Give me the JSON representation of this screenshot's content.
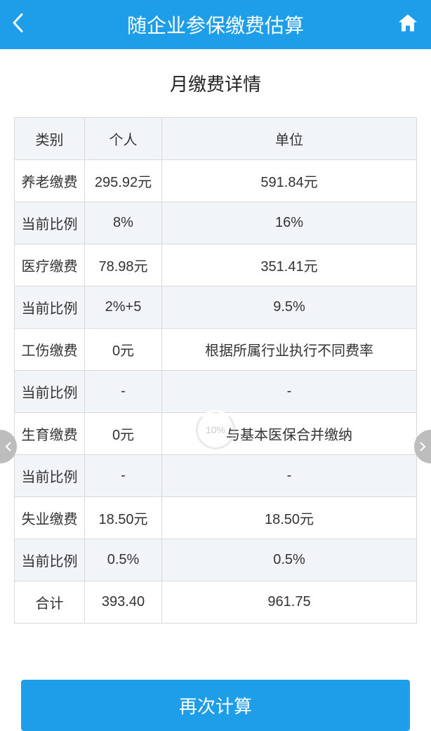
{
  "header": {
    "title": "随企业参保缴费估算"
  },
  "section_title": "月缴费详情",
  "table": {
    "columns": [
      "类别",
      "个人",
      "单位"
    ],
    "rows": [
      {
        "c0": "养老缴费",
        "c1": "295.92元",
        "c2": "591.84元",
        "alt": false
      },
      {
        "c0": "当前比例",
        "c1": "8%",
        "c2": "16%",
        "alt": true
      },
      {
        "c0": "医疗缴费",
        "c1": "78.98元",
        "c2": "351.41元",
        "alt": false
      },
      {
        "c0": "当前比例",
        "c1": "2%+5",
        "c2": "9.5%",
        "alt": true
      },
      {
        "c0": "工伤缴费",
        "c1": "0元",
        "c2": "根据所属行业执行不同费率",
        "alt": false
      },
      {
        "c0": "当前比例",
        "c1": "-",
        "c2": "-",
        "alt": true
      },
      {
        "c0": "生育缴费",
        "c1": "0元",
        "c2": "与基本医保合并缴纳",
        "alt": false
      },
      {
        "c0": "当前比例",
        "c1": "-",
        "c2": "-",
        "alt": true
      },
      {
        "c0": "失业缴费",
        "c1": "18.50元",
        "c2": "18.50元",
        "alt": false
      },
      {
        "c0": "当前比例",
        "c1": "0.5%",
        "c2": "0.5%",
        "alt": true
      },
      {
        "c0": "合计",
        "c1": "393.40",
        "c2": "961.75",
        "alt": false
      }
    ]
  },
  "recalc_label": "再次计算",
  "spinner_text": "10%",
  "colors": {
    "primary": "#1e9ee9",
    "border": "#d9d9d9",
    "alt_bg": "#f2f5f7",
    "text": "#333333",
    "nav_circle": "#bdbdbd"
  }
}
